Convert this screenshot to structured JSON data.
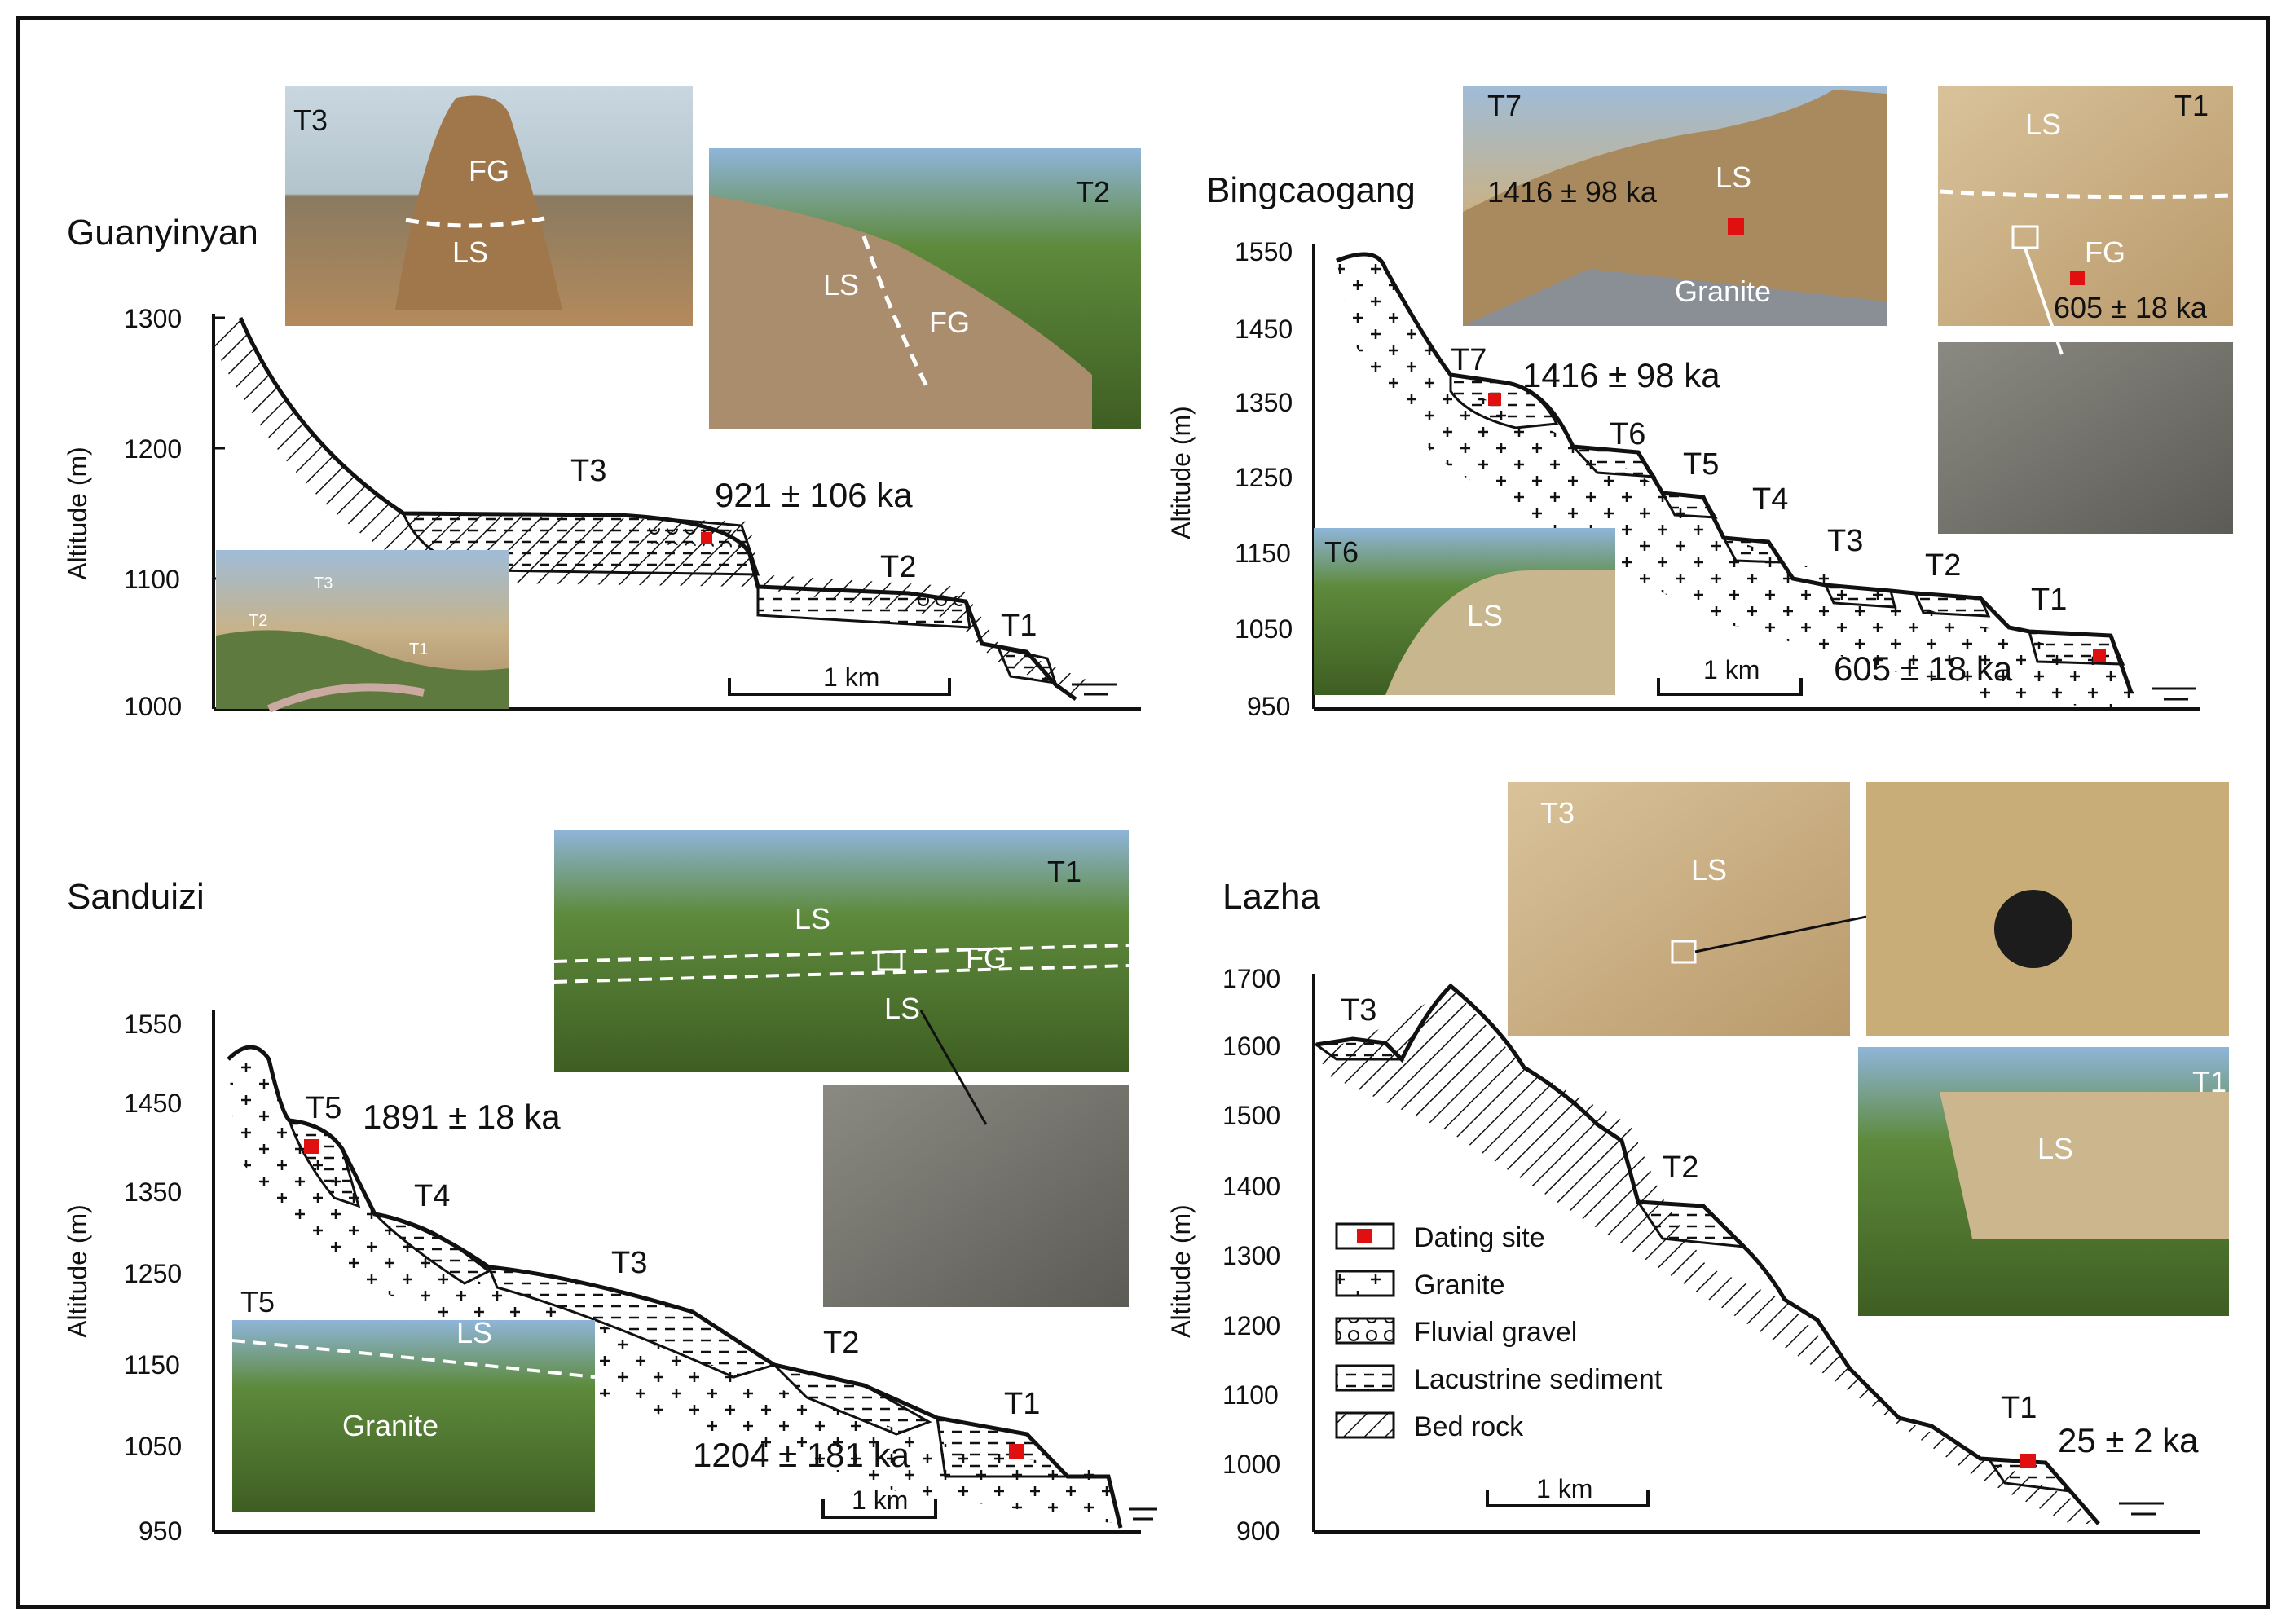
{
  "panels": {
    "guanyinyan": {
      "title": "Guanyinyan",
      "yticks": [
        "1300",
        "1200",
        "1100",
        "1000"
      ],
      "axis_label": "Altitude (m)",
      "terraces": [
        "T3",
        "T2",
        "T1"
      ],
      "age": "921 ± 106 ka",
      "scale": "1 km",
      "photo_t3": {
        "tag": "T3",
        "upper": "FG",
        "lower": "LS"
      },
      "photo_t2": {
        "tag": "T2",
        "left": "LS",
        "right": "FG"
      },
      "photo_overview": {
        "a": "T3",
        "b": "T2",
        "c": "T1"
      }
    },
    "bingcaogang": {
      "title": "Bingcaogang",
      "yticks": [
        "1550",
        "1450",
        "1350",
        "1250",
        "1150",
        "1050",
        "950"
      ],
      "axis_label": "Altitude (m)",
      "terraces": [
        "T7",
        "T6",
        "T5",
        "T4",
        "T3",
        "T2",
        "T1"
      ],
      "age_t7": "1416 ± 98 ka",
      "age_t1": "605 ± 18 ka",
      "scale": "1 km",
      "photo_t7": {
        "tag": "T7",
        "age": "1416 ± 98 ka",
        "ls": "LS",
        "granite": "Granite"
      },
      "photo_t1": {
        "tag": "T1",
        "ls": "LS",
        "fg": "FG",
        "age": "605 ± 18 ka"
      },
      "photo_t6": {
        "tag": "T6",
        "ls": "LS"
      }
    },
    "sanduizi": {
      "title": "Sanduizi",
      "yticks": [
        "1550",
        "1450",
        "1350",
        "1250",
        "1150",
        "1050",
        "950"
      ],
      "axis_label": "Altitude (m)",
      "terraces": [
        "T5",
        "T4",
        "T3",
        "T2",
        "T1"
      ],
      "age_t5": "1891 ± 18 ka",
      "age_t1": "1204 ± 181 ka",
      "scale": "1 km",
      "photo_t1": {
        "tag": "T1",
        "ls_top": "LS",
        "fg": "FG",
        "ls_bottom": "LS"
      },
      "photo_t5": {
        "tag": "T5",
        "ls": "LS",
        "granite": "Granite"
      }
    },
    "lazha": {
      "title": "Lazha",
      "yticks": [
        "1700",
        "1600",
        "1500",
        "1400",
        "1300",
        "1200",
        "1100",
        "1000",
        "900"
      ],
      "axis_label": "Altitude (m)",
      "terraces": [
        "T3",
        "T2",
        "T1"
      ],
      "age": "25 ± 2 ka",
      "scale": "1 km",
      "photo_t3": {
        "tag": "T3",
        "ls": "LS"
      },
      "photo_t1": {
        "tag": "T1",
        "ls": "LS"
      }
    }
  },
  "legend": {
    "items": [
      "Dating site",
      "Granite",
      "Fluvial gravel",
      "Lacustrine sediment",
      "Bed rock"
    ]
  },
  "colors": {
    "dating_site": "#e01010",
    "line": "#111111"
  }
}
